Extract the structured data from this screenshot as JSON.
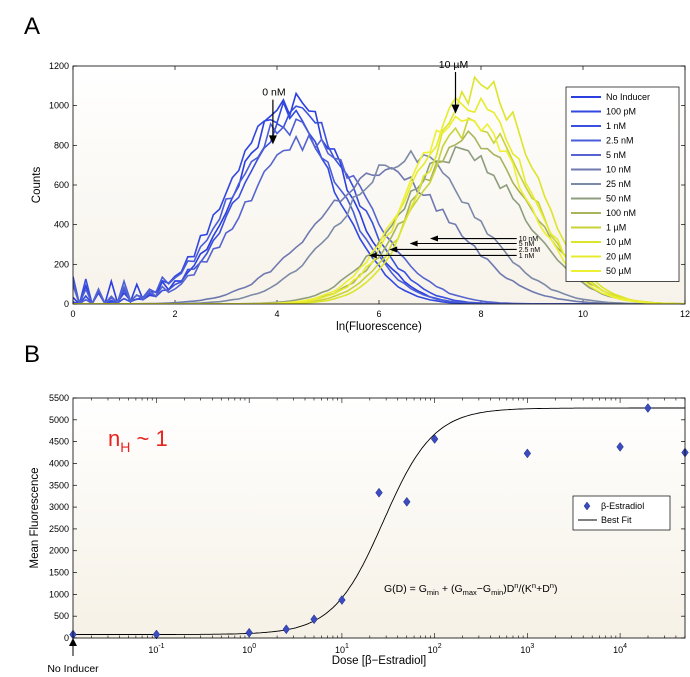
{
  "chart_data": [
    {
      "panel": "A",
      "type": "line",
      "title": "",
      "xlabel": "ln(Fluorescence)",
      "ylabel": "Counts",
      "xlim": [
        0,
        12
      ],
      "ylim": [
        0,
        1200
      ],
      "xticks": [
        0,
        2,
        4,
        6,
        8,
        10,
        12
      ],
      "yticks": [
        0,
        200,
        400,
        600,
        800,
        1000,
        1200
      ],
      "legend_position": "top-right",
      "series": [
        {
          "name": "No Inducer",
          "color": "#2b3fe0",
          "mu": 4.3,
          "sigma": 1.05,
          "peak": 1010
        },
        {
          "name": "100 pM",
          "color": "#3148e2",
          "mu": 4.1,
          "sigma": 1.05,
          "peak": 960
        },
        {
          "name": "1 nM",
          "color": "#3a50dd",
          "mu": 4.4,
          "sigma": 1.1,
          "peak": 950
        },
        {
          "name": "2.5 nM",
          "color": "#4a5dd8",
          "mu": 4.2,
          "sigma": 1.1,
          "peak": 900
        },
        {
          "name": "5 nM",
          "color": "#5664d0",
          "mu": 4.6,
          "sigma": 1.2,
          "peak": 820
        },
        {
          "name": "10 nM",
          "color": "#6f79b0",
          "mu": 6.1,
          "sigma": 1.35,
          "peak": 660
        },
        {
          "name": "25 nM",
          "color": "#7c8aa8",
          "mu": 6.6,
          "sigma": 1.3,
          "peak": 740
        },
        {
          "name": "50 nM",
          "color": "#8d9d7e",
          "mu": 7.6,
          "sigma": 1.2,
          "peak": 760
        },
        {
          "name": "100 nM",
          "color": "#a9b45a",
          "mu": 7.8,
          "sigma": 1.15,
          "peak": 840
        },
        {
          "name": "1 µM",
          "color": "#c8d33a",
          "mu": 7.9,
          "sigma": 1.1,
          "peak": 900
        },
        {
          "name": "10 µM",
          "color": "#dde52a",
          "mu": 8.0,
          "sigma": 1.05,
          "peak": 1100
        },
        {
          "name": "20 µM",
          "color": "#e6ec2c",
          "mu": 7.8,
          "sigma": 1.1,
          "peak": 1020
        },
        {
          "name": "50 µM",
          "color": "#eef034",
          "mu": 7.7,
          "sigma": 1.12,
          "peak": 960
        }
      ],
      "annotations": [
        {
          "text": "0 nM",
          "x": 3.9,
          "y": 870
        },
        {
          "text": "10 µM",
          "x": 7.5,
          "y": 1010
        },
        {
          "text": "10 nM",
          "x": 6.0,
          "y": 300
        },
        {
          "text": "5 nM",
          "x": 6.0,
          "y": 270
        },
        {
          "text": "2.5 nM",
          "x": 6.0,
          "y": 240
        },
        {
          "text": "1 nM",
          "x": 6.0,
          "y": 220
        }
      ]
    },
    {
      "panel": "B",
      "type": "scatter",
      "title": "",
      "xlabel": "Dose [β−Estradiol]",
      "ylabel": "Mean Fluorescence",
      "xscale": "log",
      "xlim_log10": [
        -1.9,
        4.7
      ],
      "ylim": [
        0,
        5500
      ],
      "yticks": [
        0,
        500,
        1000,
        1500,
        2000,
        2500,
        3000,
        3500,
        4000,
        4500,
        5000,
        5500
      ],
      "xticks_log10": [
        -1,
        0,
        1,
        2,
        3,
        4
      ],
      "legend_position": "right",
      "series": [
        {
          "name": "β-Estradiol",
          "color": "#3b4cc0",
          "points": [
            {
              "log10x": -1.9,
              "y": 80,
              "label": "No Inducer"
            },
            {
              "log10x": -1.0,
              "y": 80
            },
            {
              "log10x": 0.0,
              "y": 120
            },
            {
              "log10x": 0.4,
              "y": 200
            },
            {
              "log10x": 0.7,
              "y": 430
            },
            {
              "log10x": 1.0,
              "y": 870
            },
            {
              "log10x": 1.4,
              "y": 3330
            },
            {
              "log10x": 1.7,
              "y": 3120
            },
            {
              "log10x": 2.0,
              "y": 4560
            },
            {
              "log10x": 3.0,
              "y": 4230
            },
            {
              "log10x": 4.0,
              "y": 4380
            },
            {
              "log10x": 4.3,
              "y": 5270
            },
            {
              "log10x": 4.7,
              "y": 4250
            }
          ]
        },
        {
          "name": "Best Fit",
          "color": "#000000",
          "model": {
            "Gmin": 80,
            "Gmax": 5270,
            "K": 28,
            "n": 1.6
          }
        }
      ],
      "annotations": {
        "hill": "n",
        "hill_sub": "H",
        "hill_rest": " ~ 1",
        "hill_color": "#e8231e",
        "no_inducer": "No Inducer",
        "equation": {
          "g": "G(D) = G",
          "min1": "min",
          "plus": " + (G",
          "max": "max",
          "minus": "−G",
          "min2": "min",
          "dn": ")D",
          "n1": "n",
          "div": "/(K",
          "n2": "n",
          "plusd": "+D",
          "n3": "n",
          "close": ")"
        }
      }
    }
  ],
  "panels": {
    "a": "A",
    "b": "B"
  }
}
